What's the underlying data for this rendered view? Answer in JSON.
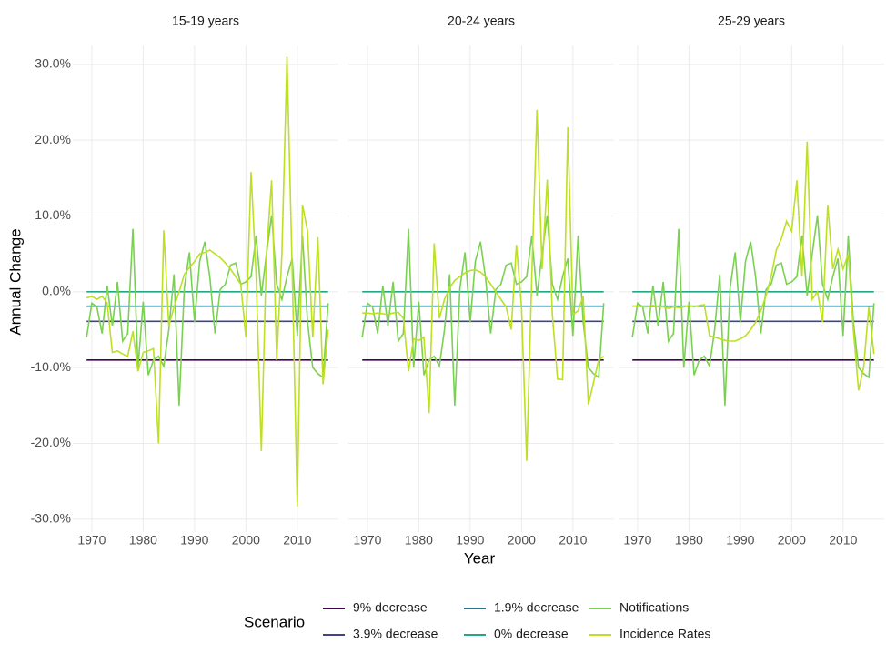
{
  "chart_data": {
    "type": "line",
    "x_label": "Year",
    "y_label": "Annual Change",
    "legend_title": "Scenario",
    "xlim": [
      1966.3,
      2018
    ],
    "xticks": [
      1970,
      1980,
      1990,
      2000,
      2010
    ],
    "ylim": [
      -31.7,
      32.5
    ],
    "yticks": [
      {
        "value": -30,
        "label": "-30.0%"
      },
      {
        "value": -20,
        "label": "-20.0%"
      },
      {
        "value": -10,
        "label": "-10.0%"
      },
      {
        "value": 0,
        "label": "0.0%"
      },
      {
        "value": 10,
        "label": "10.0%"
      },
      {
        "value": 20,
        "label": "20.0%"
      },
      {
        "value": 30,
        "label": "30.0%"
      }
    ],
    "grid": true,
    "legend_position": "bottom",
    "facets": [
      {
        "title": "15-19 years",
        "x": [
          1969,
          1970,
          1971,
          1972,
          1973,
          1974,
          1975,
          1976,
          1977,
          1978,
          1979,
          1980,
          1981,
          1982,
          1983,
          1984,
          1985,
          1986,
          1987,
          1988,
          1989,
          1990,
          1991,
          1992,
          1993,
          1994,
          1995,
          1996,
          1997,
          1998,
          1999,
          2000,
          2001,
          2002,
          2003,
          2004,
          2005,
          2006,
          2007,
          2008,
          2009,
          2010,
          2011,
          2012,
          2013,
          2014,
          2015,
          2016
        ],
        "series": [
          {
            "name": "9% decrease",
            "color": "#440154",
            "x": [
              1969,
              2016
            ],
            "values": [
              -9,
              -9
            ]
          },
          {
            "name": "3.9% decrease",
            "color": "#414487",
            "x": [
              1969,
              2016
            ],
            "values": [
              -3.9,
              -3.9
            ]
          },
          {
            "name": "1.9% decrease",
            "color": "#2a788e",
            "x": [
              1969,
              2016
            ],
            "values": [
              -1.9,
              -1.9
            ]
          },
          {
            "name": "0% decrease",
            "color": "#22a884",
            "x": [
              1969,
              2016
            ],
            "values": [
              0,
              0
            ]
          },
          {
            "name": "Notifications",
            "color": "#7ad151",
            "values": [
              -6,
              -1.5,
              -2,
              -5.5,
              0.8,
              -4.5,
              1.3,
              -6.5,
              -5.5,
              8.3,
              -10,
              -1.3,
              -11,
              -9,
              -8.5,
              -9.8,
              -5,
              2.3,
              -15,
              0.5,
              5.2,
              -4,
              4,
              6.6,
              1.8,
              -5.5,
              0.3,
              1,
              3.5,
              3.8,
              1,
              1.3,
              2,
              7.4,
              -0.5,
              5,
              10.1,
              1,
              -1,
              2,
              4.4,
              -5.8,
              7.4,
              -4,
              -10,
              -10.8,
              -11.3,
              -1.5
            ]
          },
          {
            "name": "Incidence Rates",
            "color": "#bddf26",
            "values": [
              -0.8,
              -0.6,
              -1,
              -0.6,
              -1.5,
              -8,
              -7.8,
              -8.2,
              -8.5,
              -5.2,
              -10.5,
              -8,
              -7.8,
              -7.5,
              -20,
              8.1,
              -4.5,
              -2,
              0,
              2.3,
              3.2,
              4,
              5,
              5.2,
              5.5,
              5,
              4.5,
              3.8,
              3,
              2,
              1,
              -6,
              15.8,
              2,
              -21,
              5,
              14.7,
              -9,
              5,
              31,
              3,
              -28.3,
              11.5,
              8,
              -6,
              7.2,
              -12.2,
              -5
            ]
          }
        ]
      },
      {
        "title": "20-24 years",
        "x": [
          1969,
          1970,
          1971,
          1972,
          1973,
          1974,
          1975,
          1976,
          1977,
          1978,
          1979,
          1980,
          1981,
          1982,
          1983,
          1984,
          1985,
          1986,
          1987,
          1988,
          1989,
          1990,
          1991,
          1992,
          1993,
          1994,
          1995,
          1996,
          1997,
          1998,
          1999,
          2000,
          2001,
          2002,
          2003,
          2004,
          2005,
          2006,
          2007,
          2008,
          2009,
          2010,
          2011,
          2012,
          2013,
          2014,
          2015,
          2016
        ],
        "series": [
          {
            "name": "9% decrease",
            "color": "#440154",
            "x": [
              1969,
              2016
            ],
            "values": [
              -9,
              -9
            ]
          },
          {
            "name": "3.9% decrease",
            "color": "#414487",
            "x": [
              1969,
              2016
            ],
            "values": [
              -3.9,
              -3.9
            ]
          },
          {
            "name": "1.9% decrease",
            "color": "#2a788e",
            "x": [
              1969,
              2016
            ],
            "values": [
              -1.9,
              -1.9
            ]
          },
          {
            "name": "0% decrease",
            "color": "#22a884",
            "x": [
              1969,
              2016
            ],
            "values": [
              0,
              0
            ]
          },
          {
            "name": "Notifications",
            "color": "#7ad151",
            "values": [
              -6,
              -1.5,
              -2,
              -5.5,
              0.8,
              -4.5,
              1.3,
              -6.5,
              -5.5,
              8.3,
              -10,
              -1.3,
              -11,
              -9,
              -8.5,
              -9.8,
              -5,
              2.3,
              -15,
              0.5,
              5.2,
              -4,
              4,
              6.6,
              1.8,
              -5.5,
              0.3,
              1,
              3.5,
              3.8,
              1,
              1.3,
              2,
              7.4,
              -0.5,
              5,
              10.1,
              1,
              -1,
              2,
              4.4,
              -5.8,
              7.4,
              -4,
              -10,
              -10.8,
              -11.3,
              -1.5
            ]
          },
          {
            "name": "Incidence Rates",
            "color": "#bddf26",
            "values": [
              -2.8,
              -2.8,
              -2.9,
              -2.8,
              -2.9,
              -3,
              -2.8,
              -2.7,
              -3.5,
              -10.5,
              -6.2,
              -6.4,
              -6,
              -16,
              6.4,
              -3.5,
              -1,
              0.5,
              1.5,
              2,
              2.5,
              2.8,
              2.9,
              2.6,
              2,
              1,
              0,
              -1,
              -2,
              -5,
              6.2,
              -2,
              -22.3,
              2,
              24,
              3,
              14.8,
              -3,
              -11.5,
              -11.6,
              21.7,
              -3,
              -2.5,
              -0.6,
              -14.9,
              -12,
              -9,
              -8.5
            ]
          }
        ]
      },
      {
        "title": "25-29 years",
        "x": [
          1969,
          1970,
          1971,
          1972,
          1973,
          1974,
          1975,
          1976,
          1977,
          1978,
          1979,
          1980,
          1981,
          1982,
          1983,
          1984,
          1985,
          1986,
          1987,
          1988,
          1989,
          1990,
          1991,
          1992,
          1993,
          1994,
          1995,
          1996,
          1997,
          1998,
          1999,
          2000,
          2001,
          2002,
          2003,
          2004,
          2005,
          2006,
          2007,
          2008,
          2009,
          2010,
          2011,
          2012,
          2013,
          2014,
          2015,
          2016
        ],
        "series": [
          {
            "name": "9% decrease",
            "color": "#440154",
            "x": [
              1969,
              2016
            ],
            "values": [
              -9,
              -9
            ]
          },
          {
            "name": "3.9% decrease",
            "color": "#414487",
            "x": [
              1969,
              2016
            ],
            "values": [
              -3.9,
              -3.9
            ]
          },
          {
            "name": "1.9% decrease",
            "color": "#2a788e",
            "x": [
              1969,
              2016
            ],
            "values": [
              -1.9,
              -1.9
            ]
          },
          {
            "name": "0% decrease",
            "color": "#22a884",
            "x": [
              1969,
              2016
            ],
            "values": [
              0,
              0
            ]
          },
          {
            "name": "Notifications",
            "color": "#7ad151",
            "values": [
              -6,
              -1.5,
              -2,
              -5.5,
              0.8,
              -4.5,
              1.3,
              -6.5,
              -5.5,
              8.3,
              -10,
              -1.3,
              -11,
              -9,
              -8.5,
              -9.8,
              -5,
              2.3,
              -15,
              0.5,
              5.2,
              -4,
              4,
              6.6,
              1.8,
              -5.5,
              0.3,
              1,
              3.5,
              3.8,
              1,
              1.3,
              2,
              7.4,
              -0.5,
              5,
              10.1,
              1,
              -1,
              2,
              4.4,
              -5.8,
              7.4,
              -4,
              -10,
              -10.8,
              -11.3,
              -1.5
            ]
          },
          {
            "name": "Incidence Rates",
            "color": "#bddf26",
            "values": [
              -1.9,
              -1.9,
              -2,
              -2,
              -1.8,
              -2,
              -2,
              -2.2,
              -2,
              -2.1,
              -2,
              -1.8,
              -2,
              -1.8,
              -1.7,
              -5.8,
              -6,
              -6.2,
              -6.4,
              -6.5,
              -6.5,
              -6.2,
              -5.8,
              -5,
              -4,
              -2.5,
              -0.5,
              2,
              5.5,
              7,
              9.3,
              8,
              14.7,
              2,
              19.8,
              -1,
              0,
              -4,
              11.5,
              3,
              5.6,
              3,
              5,
              -5,
              -13,
              -10,
              -2,
              -8.2
            ]
          }
        ]
      }
    ]
  }
}
